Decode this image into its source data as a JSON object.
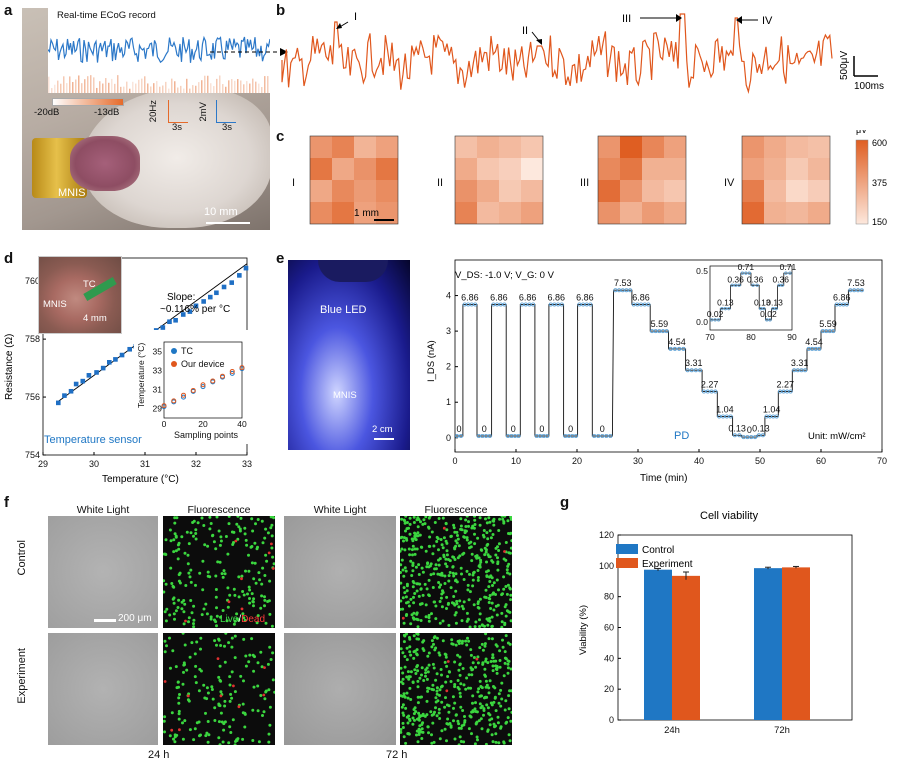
{
  "panels": {
    "a": {
      "letter": "a",
      "ecog_title": "Real-time ECoG record",
      "db_low": "-20dB",
      "db_high": "-13dB",
      "hz_label": "20Hz",
      "mv_label": "2mV",
      "time_l": "3s",
      "time_r": "3s",
      "device": "MNIS",
      "scale": "10 mm"
    },
    "b": {
      "letter": "b",
      "markers": [
        "I",
        "II",
        "III",
        "IV"
      ],
      "amp": "500μV",
      "time": "100ms"
    },
    "c": {
      "letter": "c",
      "labels": [
        "I",
        "II",
        "III",
        "IV"
      ],
      "scale": "1 mm",
      "cbar_unit": "μV",
      "cbar_ticks": [
        "600",
        "375",
        "150"
      ]
    },
    "d": {
      "letter": "d",
      "tc": "TC",
      "device": "MNIS",
      "scale": "4 mm",
      "slope_1": "Slope:",
      "slope_2": "~0.116% per °C",
      "caption": "Temperature sensor",
      "ylabel": "Resistance (Ω)",
      "xlabel": "Temperature (°C)",
      "inset_ylabel": "Temperature (°C)",
      "inset_xlabel": "Sampling points",
      "legend_tc": "TC",
      "legend_dev": "Our device"
    },
    "e": {
      "letter": "e",
      "led": "Blue LED",
      "device": "MNIS",
      "scale": "2 cm",
      "bias": "V_DS: -1.0 V; V_G: 0 V",
      "pd": "PD",
      "unit": "Unit: mW/cm²",
      "ylabel": "I_DS (nA)",
      "xlabel": "Time (min)"
    },
    "f": {
      "letter": "f",
      "cols": [
        "White Light",
        "Fluorescence",
        "White Light",
        "Fluorescence"
      ],
      "rows": [
        "Control",
        "Experiment"
      ],
      "scale": "200 μm",
      "live": "Live",
      "slash": "/",
      "dead": "Dead",
      "time_24": "24 h",
      "time_72": "72 h"
    },
    "g": {
      "letter": "g",
      "title": "Cell viability",
      "ylabel": "Viability (%)",
      "legend": [
        "Control",
        "Experiment"
      ]
    }
  },
  "chart_data": [
    {
      "id": "d-main",
      "type": "scatter",
      "xlabel": "Temperature (°C)",
      "ylabel": "Resistance (Ω)",
      "xlim": [
        29,
        33
      ],
      "ylim": [
        754,
        760.8
      ],
      "xticks": [
        29,
        30,
        31,
        32,
        33
      ],
      "yticks": [
        754,
        756,
        758,
        760
      ],
      "fit": {
        "x": [
          29.3,
          33.0
        ],
        "y": [
          755.85,
          760.6
        ]
      },
      "points_x": [
        29.3,
        29.42,
        29.55,
        29.65,
        29.78,
        29.9,
        30.05,
        30.18,
        30.3,
        30.42,
        30.55,
        30.7,
        30.82,
        30.95,
        31.1,
        31.22,
        31.35,
        31.48,
        31.6,
        31.75,
        31.88,
        32.0,
        32.15,
        32.28,
        32.4,
        32.55,
        32.7,
        32.85,
        32.98
      ],
      "points_y": [
        755.8,
        756.05,
        756.2,
        756.45,
        756.55,
        756.75,
        756.85,
        757.0,
        757.2,
        757.3,
        757.45,
        757.65,
        757.75,
        757.95,
        758.1,
        758.3,
        758.4,
        758.6,
        758.65,
        758.85,
        758.95,
        759.15,
        759.3,
        759.45,
        759.6,
        759.8,
        759.95,
        760.2,
        760.45
      ]
    },
    {
      "id": "d-inset",
      "type": "scatter",
      "xlabel": "Sampling points",
      "ylabel": "Temperature (°C)",
      "xlim": [
        0,
        40
      ],
      "ylim": [
        28,
        36
      ],
      "xticks": [
        0,
        20,
        40
      ],
      "yticks": [
        29,
        31,
        33,
        35
      ],
      "series": [
        {
          "name": "TC",
          "x": [
            0,
            5,
            10,
            15,
            20,
            25,
            30,
            35,
            40
          ],
          "y": [
            29.2,
            29.7,
            30.2,
            30.8,
            31.3,
            31.8,
            32.3,
            32.7,
            33.2
          ]
        },
        {
          "name": "Our device",
          "x": [
            0,
            5,
            10,
            15,
            20,
            25,
            30,
            35,
            40
          ],
          "y": [
            29.3,
            29.8,
            30.4,
            30.9,
            31.5,
            31.9,
            32.4,
            32.9,
            33.3
          ]
        }
      ]
    },
    {
      "id": "e-main",
      "type": "line",
      "xlabel": "Time (min)",
      "ylabel": "I_DS (nA)",
      "xlim": [
        0,
        70
      ],
      "ylim": [
        -0.4,
        5
      ],
      "xticks": [
        0,
        10,
        20,
        30,
        40,
        50,
        60,
        70
      ],
      "yticks": [
        0,
        1,
        2,
        3,
        4
      ],
      "steps": [
        {
          "t0": 0,
          "t1": 1.3,
          "v": 0.05,
          "label": "0"
        },
        {
          "t0": 1.3,
          "t1": 3.6,
          "v": 3.75,
          "label": "6.86"
        },
        {
          "t0": 3.6,
          "t1": 6.0,
          "v": 0.05,
          "label": "0"
        },
        {
          "t0": 6.0,
          "t1": 8.4,
          "v": 3.75,
          "label": "6.86"
        },
        {
          "t0": 8.4,
          "t1": 10.7,
          "v": 0.05,
          "label": "0"
        },
        {
          "t0": 10.7,
          "t1": 13.1,
          "v": 3.75,
          "label": "6.86"
        },
        {
          "t0": 13.1,
          "t1": 15.4,
          "v": 0.05,
          "label": "0"
        },
        {
          "t0": 15.4,
          "t1": 17.8,
          "v": 3.75,
          "label": "6.86"
        },
        {
          "t0": 17.8,
          "t1": 20.1,
          "v": 0.05,
          "label": "0"
        },
        {
          "t0": 20.1,
          "t1": 22.5,
          "v": 3.75,
          "label": "6.86"
        },
        {
          "t0": 22.5,
          "t1": 25.8,
          "v": 0.05,
          "label": "0"
        },
        {
          "t0": 26,
          "t1": 29,
          "v": 4.15,
          "label": "7.53"
        },
        {
          "t0": 29,
          "t1": 32,
          "v": 3.75,
          "label": "6.86"
        },
        {
          "t0": 32,
          "t1": 35,
          "v": 3.0,
          "label": "5.59"
        },
        {
          "t0": 35,
          "t1": 37.8,
          "v": 2.5,
          "label": "4.54"
        },
        {
          "t0": 37.8,
          "t1": 40.5,
          "v": 1.9,
          "label": "3.31"
        },
        {
          "t0": 40.5,
          "t1": 43,
          "v": 1.3,
          "label": "2.27"
        },
        {
          "t0": 43,
          "t1": 45.5,
          "v": 0.6,
          "label": "1.04"
        },
        {
          "t0": 45.5,
          "t1": 47,
          "v": 0.07,
          "label": "0.13"
        },
        {
          "t0": 47,
          "t1": 49.5,
          "v": 0.02,
          "label": "0"
        },
        {
          "t0": 49.5,
          "t1": 50.8,
          "v": 0.07,
          "label": "0.13"
        },
        {
          "t0": 50.8,
          "t1": 53,
          "v": 0.6,
          "label": "1.04"
        },
        {
          "t0": 53,
          "t1": 55.3,
          "v": 1.3,
          "label": "2.27"
        },
        {
          "t0": 55.3,
          "t1": 57.7,
          "v": 1.9,
          "label": "3.31"
        },
        {
          "t0": 57.7,
          "t1": 60,
          "v": 2.5,
          "label": "4.54"
        },
        {
          "t0": 60,
          "t1": 62.3,
          "v": 3.0,
          "label": "5.59"
        },
        {
          "t0": 62.3,
          "t1": 64.5,
          "v": 3.75,
          "label": "6.86"
        },
        {
          "t0": 64.5,
          "t1": 67,
          "v": 4.15,
          "label": "7.53"
        }
      ]
    },
    {
      "id": "e-inset",
      "type": "line",
      "xlim": [
        70,
        90
      ],
      "ylim": [
        -0.08,
        0.55
      ],
      "xticks": [
        70,
        80,
        90
      ],
      "yticks": [
        0.0,
        0.5
      ],
      "steps": [
        {
          "t0": 70,
          "t1": 72.5,
          "v": 0.02,
          "label": "0.02"
        },
        {
          "t0": 72.5,
          "t1": 75,
          "v": 0.13,
          "label": "0.13"
        },
        {
          "t0": 75,
          "t1": 77.5,
          "v": 0.36,
          "label": "0.36"
        },
        {
          "t0": 77.5,
          "t1": 80,
          "v": 0.48,
          "label": "0.71"
        },
        {
          "t0": 80,
          "t1": 82,
          "v": 0.36,
          "label": "0.36"
        },
        {
          "t0": 82,
          "t1": 83.5,
          "v": 0.13,
          "label": "0.13"
        },
        {
          "t0": 83.5,
          "t1": 85,
          "v": 0.02,
          "label": "0.02"
        },
        {
          "t0": 85,
          "t1": 86.5,
          "v": 0.13,
          "label": "0.13"
        },
        {
          "t0": 86.5,
          "t1": 88,
          "v": 0.36,
          "label": "0.36"
        },
        {
          "t0": 88,
          "t1": 90,
          "v": 0.48,
          "label": "0.71"
        }
      ]
    },
    {
      "id": "g",
      "type": "bar",
      "title": "Cell viability",
      "ylabel": "Viability (%)",
      "categories": [
        "24h",
        "72h"
      ],
      "ylim": [
        0,
        120
      ],
      "yticks": [
        0,
        20,
        40,
        60,
        80,
        100,
        120
      ],
      "series": [
        {
          "name": "Control",
          "values": [
            97.5,
            98.5
          ],
          "err": [
            0.8,
            0.6
          ],
          "color": "#1f77c4"
        },
        {
          "name": "Experiment",
          "values": [
            93.5,
            99
          ],
          "err": [
            2.5,
            0.6
          ],
          "color": "#e0571d"
        }
      ]
    },
    {
      "id": "c",
      "type": "heatmap",
      "zlim": [
        150,
        600
      ],
      "maps": [
        [
          [
            420,
            480,
            320,
            380
          ],
          [
            520,
            360,
            430,
            520
          ],
          [
            360,
            460,
            400,
            450
          ],
          [
            450,
            520,
            380,
            420
          ]
        ],
        [
          [
            280,
            330,
            300,
            260
          ],
          [
            350,
            260,
            230,
            150
          ],
          [
            430,
            350,
            250,
            300
          ],
          [
            480,
            300,
            330,
            380
          ]
        ],
        [
          [
            420,
            600,
            470,
            380
          ],
          [
            460,
            520,
            330,
            330
          ],
          [
            550,
            420,
            300,
            260
          ],
          [
            430,
            330,
            400,
            350
          ]
        ],
        [
          [
            420,
            350,
            300,
            280
          ],
          [
            380,
            330,
            250,
            310
          ],
          [
            500,
            300,
            200,
            240
          ],
          [
            560,
            330,
            310,
            350
          ]
        ]
      ]
    }
  ]
}
